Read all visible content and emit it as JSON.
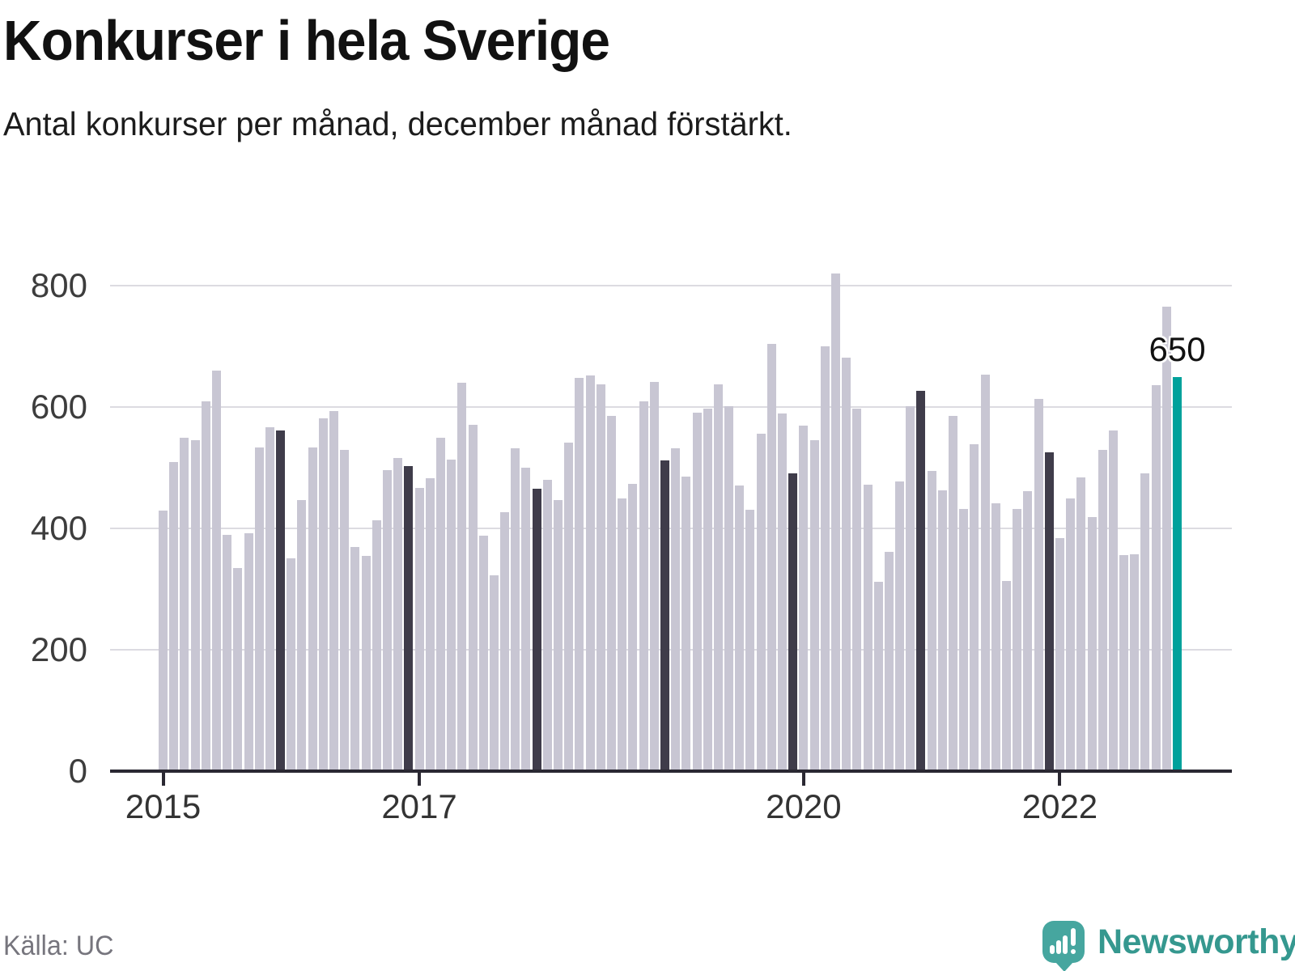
{
  "header": {
    "title": "Konkurser i hela Sverige",
    "subtitle": "Antal konkurser per månad, december månad förstärkt."
  },
  "footer": {
    "source": "Källa: UC",
    "brand": "Newsworthy"
  },
  "colors": {
    "bar_default": "#c8c6d3",
    "bar_december": "#3f3c4a",
    "bar_highlight": "#00a19b",
    "gridline": "#dcdbe1",
    "axis": "#2a2832",
    "logo_teal": "#46a69f"
  },
  "chart_data": {
    "type": "bar",
    "title": "Konkurser i hela Sverige",
    "subtitle": "Antal konkurser per månad, december månad förstärkt.",
    "x_start": "2015-01",
    "x_end": "2022-12",
    "frequency": "monthly",
    "ylim": [
      0,
      800
    ],
    "yticks": [
      0,
      200,
      400,
      600,
      800
    ],
    "grid": true,
    "xticks": [
      {
        "label": "2015",
        "month_index": 0
      },
      {
        "label": "2017",
        "month_index": 24
      },
      {
        "label": "2020",
        "month_index": 60
      },
      {
        "label": "2022",
        "month_index": 84
      }
    ],
    "december_emphasized": true,
    "last_bar": {
      "month": "2022-12",
      "value": 650,
      "label": "650"
    },
    "values": [
      430,
      510,
      550,
      545,
      610,
      660,
      389,
      335,
      392,
      533,
      567,
      562,
      351,
      447,
      534,
      582,
      593,
      530,
      369,
      355,
      414,
      496,
      516,
      503,
      467,
      483,
      550,
      514,
      640,
      571,
      388,
      323,
      427,
      532,
      500,
      466,
      480,
      447,
      542,
      648,
      652,
      637,
      586,
      450,
      473,
      609,
      641,
      512,
      532,
      486,
      591,
      597,
      637,
      602,
      471,
      431,
      556,
      704,
      590,
      491,
      570,
      545,
      700,
      820,
      681,
      597,
      472,
      312,
      362,
      477,
      602,
      627,
      495,
      463,
      585,
      432,
      539,
      654,
      441,
      313,
      432,
      462,
      614,
      525,
      384,
      450,
      484,
      419,
      529,
      562,
      356,
      358,
      491,
      636,
      765,
      650
    ]
  }
}
